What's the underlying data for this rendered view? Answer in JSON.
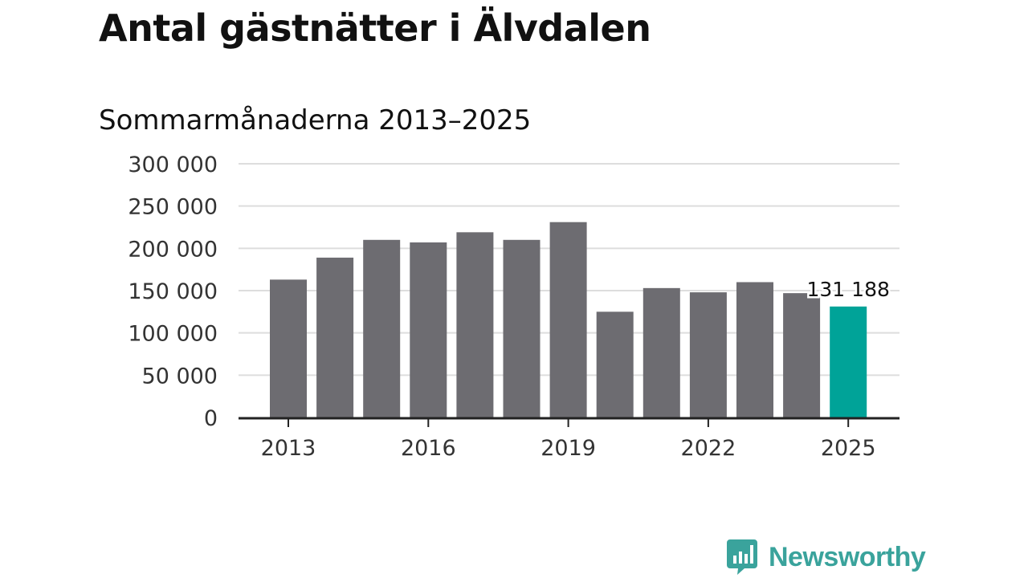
{
  "header": {
    "title": "Antal gästnätter i Älvdalen",
    "subtitle": "Sommarmånaderna 2013–2025"
  },
  "brand": {
    "name": "Newsworthy",
    "color": "#3aa39c",
    "icon": "newsworthy-chart-bubble-icon"
  },
  "colors": {
    "bar": "#6d6c71",
    "highlight": "#00a398",
    "grid": "#dddddd",
    "axis": "#222222"
  },
  "chart_data": {
    "type": "bar",
    "title": "Antal gästnätter i Älvdalen",
    "subtitle": "Sommarmånaderna 2013–2025",
    "categories": [
      "2013",
      "2014",
      "2015",
      "2016",
      "2017",
      "2018",
      "2019",
      "2020",
      "2021",
      "2022",
      "2023",
      "2024",
      "2025"
    ],
    "values": [
      163000,
      189000,
      210000,
      207000,
      219000,
      210000,
      231000,
      125000,
      153000,
      148000,
      160000,
      147000,
      131188
    ],
    "highlight_index": 12,
    "highlight_label": "131 188",
    "ylim": [
      0,
      300000
    ],
    "yticks": [
      0,
      50000,
      100000,
      150000,
      200000,
      250000,
      300000
    ],
    "ytick_labels": [
      "0",
      "50 000",
      "100 000",
      "150 000",
      "200 000",
      "250 000",
      "300 000"
    ],
    "xtick_labels": [
      "2013",
      "2016",
      "2019",
      "2022",
      "2025"
    ],
    "xtick_indices": [
      0,
      3,
      6,
      9,
      12
    ],
    "grid": true,
    "legend": "none",
    "xlabel": "",
    "ylabel": ""
  }
}
